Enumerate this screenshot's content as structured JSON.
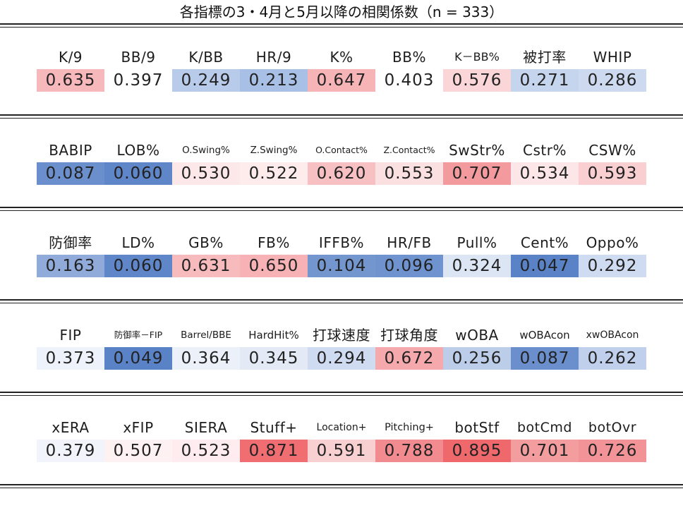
{
  "title": "各指標の3・4月と5月以降の相関係数（n = 333）",
  "colors": {
    "strong_red": "#f0686c",
    "light_red": "#f8c8ca",
    "neutral": "#ffffff",
    "light_blue": "#c3d3ec",
    "strong_blue": "#5b82c6"
  },
  "rows": [
    {
      "labels": [
        "K/9",
        "BB/9",
        "K/BB",
        "HR/9",
        "K%",
        "BB%",
        "K－BB%",
        "被打率",
        "WHIP"
      ],
      "values": [
        "0.635",
        "0.397",
        "0.249",
        "0.213",
        "0.647",
        "0.403",
        "0.576",
        "0.271",
        "0.286"
      ],
      "colors": [
        "#f6b8bb",
        "#ffffff",
        "#b9cbea",
        "#a9c0e6",
        "#f6b4b7",
        "#ffffff",
        "#fad6d8",
        "#c6d5ee",
        "#ccd9ef"
      ]
    },
    {
      "labels": [
        "BABIP",
        "LOB%",
        "O.Swing%",
        "Z.Swing%",
        "O.Contact%",
        "Z.Contact%",
        "SwStr%",
        "Cstr%",
        "CSW%"
      ],
      "values": [
        "0.087",
        "0.060",
        "0.530",
        "0.522",
        "0.620",
        "0.553",
        "0.707",
        "0.534",
        "0.593"
      ],
      "colors": [
        "#6b8fcc",
        "#5f86c8",
        "#fde8e9",
        "#feeced",
        "#f7c1c3",
        "#fbe0e1",
        "#f29a9d",
        "#fde6e7",
        "#f9cfd1"
      ]
    },
    {
      "labels": [
        "防御率",
        "LD%",
        "GB%",
        "FB%",
        "IFFB%",
        "HR/FB",
        "Pull%",
        "Cent%",
        "Oppo%"
      ],
      "values": [
        "0.163",
        "0.060",
        "0.631",
        "0.650",
        "0.104",
        "0.096",
        "0.324",
        "0.047",
        "0.292"
      ],
      "colors": [
        "#90abda",
        "#5f86c8",
        "#f7bbbe",
        "#f6b2b5",
        "#7396cf",
        "#6f93ce",
        "#dbe5f4",
        "#5a82c6",
        "#cedbf0"
      ]
    },
    {
      "labels": [
        "FIP",
        "防御率－FIP",
        "Barrel/BBE",
        "HardHit%",
        "打球速度",
        "打球角度",
        "wOBA",
        "wOBAcon",
        "xwOBAcon"
      ],
      "values": [
        "0.373",
        "0.049",
        "0.364",
        "0.345",
        "0.294",
        "0.672",
        "0.256",
        "0.087",
        "0.262"
      ],
      "colors": [
        "#eef2fa",
        "#5a82c6",
        "#ebf0f9",
        "#e3eaf6",
        "#cfdbf0",
        "#f5a9ac",
        "#bccdea",
        "#6b8fcc",
        "#c0d0ec"
      ]
    },
    {
      "labels": [
        "xERA",
        "xFIP",
        "SIERA",
        "Stuff+",
        "Location+",
        "Pitching+",
        "botStf",
        "botCmd",
        "botOvr"
      ],
      "values": [
        "0.379",
        "0.507",
        "0.523",
        "0.871",
        "0.591",
        "0.788",
        "0.895",
        "0.701",
        "0.726"
      ],
      "colors": [
        "#f1f5fb",
        "#fef1f2",
        "#feecee",
        "#f06e72",
        "#f9d0d2",
        "#f28b8f",
        "#ef686c",
        "#f39d9f",
        "#f29497"
      ]
    }
  ]
}
